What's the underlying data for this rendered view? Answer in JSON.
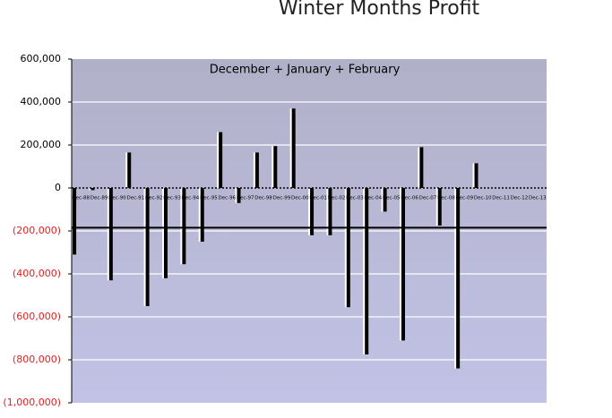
{
  "chart_data": {
    "type": "bar",
    "title": "Winter Months Profit",
    "subtitle": "December + January + February",
    "categories": [
      "Dec-88",
      "Dec-89",
      "Dec-90",
      "Dec-91",
      "Dec-92",
      "Dec-93",
      "Dec-94",
      "Dec-95",
      "Dec-96",
      "Dec-97",
      "Dec-98",
      "Dec-99",
      "Dec-00",
      "Dec-01",
      "Dec-02",
      "Dec-03",
      "Dec-04",
      "Dec-05",
      "Dec-06",
      "Dec-07",
      "Dec-08",
      "Dec-09",
      "Dec-10",
      "Dec-11",
      "Dec-12",
      "Dec-13"
    ],
    "values": [
      -310000,
      -10000,
      -430000,
      165000,
      -550000,
      -420000,
      -355000,
      -250000,
      260000,
      -70000,
      165000,
      195000,
      370000,
      -220000,
      -220000,
      -555000,
      -775000,
      -110000,
      -710000,
      190000,
      -175000,
      -840000,
      115000,
      null,
      null,
      null
    ],
    "color": "#000000",
    "average_line": -185000,
    "ylim": [
      -1000000,
      600000
    ],
    "yticks": [
      {
        "value": -1000000,
        "label": "(1,000,000)"
      },
      {
        "value": -800000,
        "label": "(800,000)"
      },
      {
        "value": -600000,
        "label": "(600,000)"
      },
      {
        "value": -400000,
        "label": "(400,000)"
      },
      {
        "value": -200000,
        "label": "(200,000)"
      },
      0,
      {
        "value": 200000,
        "label": "200,000"
      },
      {
        "value": 400000,
        "label": "400,000"
      },
      {
        "value": 600000,
        "label": "600,000"
      }
    ],
    "negative_label_color": "#e02020",
    "grid": true
  }
}
